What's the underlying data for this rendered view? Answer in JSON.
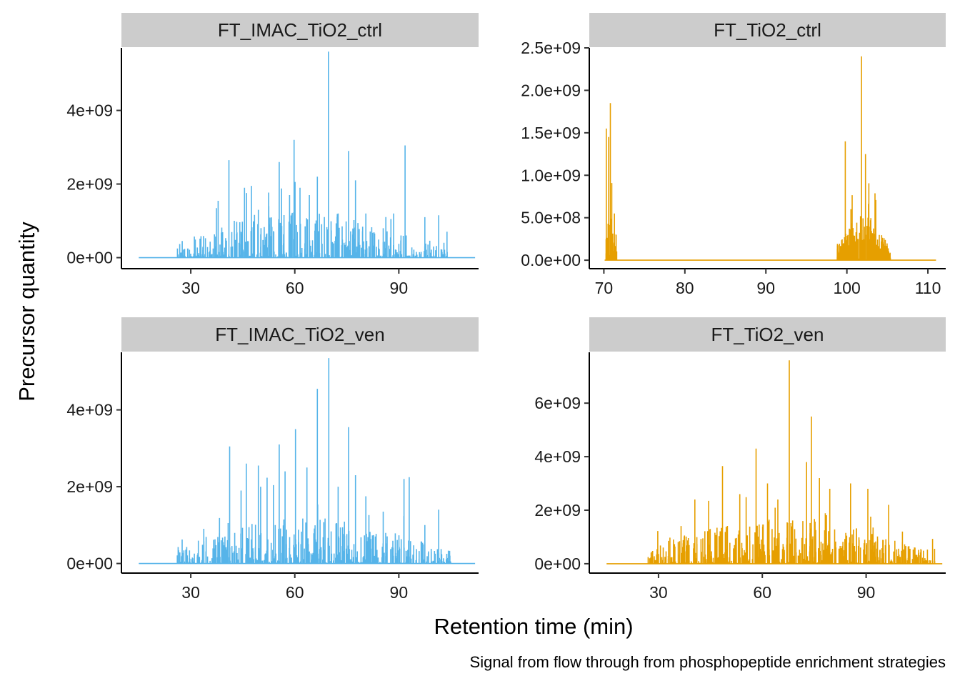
{
  "figure": {
    "xlabel": "Retention time (min)",
    "ylabel": "Precursor quantity",
    "caption": "Signal from flow through from phosphopeptide enrichment strategies"
  },
  "chart_data": [
    {
      "type": "line",
      "facet_label": "FT_IMAC_TiO2_ctrl",
      "color": "#56B4E9",
      "xlim": [
        10,
        113
      ],
      "ylim": [
        -300000000.0,
        5700000000.0
      ],
      "x_ticks": [
        30,
        60,
        90
      ],
      "x_tick_labels": [
        "30",
        "60",
        "90"
      ],
      "y_ticks": [
        0,
        2000000000.0,
        4000000000.0
      ],
      "y_tick_labels": [
        "0e+00",
        "2e+09",
        "4e+09"
      ],
      "baseline_range": [
        15,
        112
      ],
      "signal_range": [
        26,
        104
      ],
      "peaks": [
        {
          "x": 41.0,
          "y": 2650000000.0
        },
        {
          "x": 45.5,
          "y": 1900000000.0
        },
        {
          "x": 47.5,
          "y": 1950000000.0
        },
        {
          "x": 49.5,
          "y": 1300000000.0
        },
        {
          "x": 52.5,
          "y": 1400000000.0
        },
        {
          "x": 55.5,
          "y": 2600000000.0
        },
        {
          "x": 58.5,
          "y": 1700000000.0
        },
        {
          "x": 59.8,
          "y": 3200000000.0
        },
        {
          "x": 61.5,
          "y": 1900000000.0
        },
        {
          "x": 64.2,
          "y": 1700000000.0
        },
        {
          "x": 66.5,
          "y": 2200000000.0
        },
        {
          "x": 69.7,
          "y": 5600000000.0
        },
        {
          "x": 72.5,
          "y": 1200000000.0
        },
        {
          "x": 75.5,
          "y": 2900000000.0
        },
        {
          "x": 77.5,
          "y": 2100000000.0
        },
        {
          "x": 80.5,
          "y": 1200000000.0
        },
        {
          "x": 85.5,
          "y": 800000000.0
        },
        {
          "x": 88.5,
          "y": 1200000000.0
        },
        {
          "x": 91.8,
          "y": 3050000000.0
        },
        {
          "x": 97.5,
          "y": 1100000000.0
        },
        {
          "x": 101.5,
          "y": 1150000000.0
        }
      ]
    },
    {
      "type": "line",
      "facet_label": "FT_TiO2_ctrl",
      "color": "#E69F00",
      "xlim": [
        68.2,
        112.2
      ],
      "ylim": [
        -100000000.0,
        2500000000.0
      ],
      "x_ticks": [
        70,
        80,
        90,
        100,
        110
      ],
      "x_tick_labels": [
        "70",
        "80",
        "90",
        "100",
        "110"
      ],
      "y_ticks": [
        0,
        500000000.0,
        1000000000.0,
        1500000000.0,
        2000000000.0,
        2500000000.0
      ],
      "y_tick_labels": [
        "0.0e+00",
        "5.0e+08",
        "1.0e+09",
        "1.5e+09",
        "2.0e+09",
        "2.5e+09"
      ],
      "baseline_range": [
        70.1,
        111
      ],
      "signal_range": [
        70.2,
        71.6
      ],
      "signal_range_2": [
        98.8,
        105.4
      ],
      "peaks": [
        {
          "x": 70.3,
          "y": 1550000000.0
        },
        {
          "x": 70.8,
          "y": 1850000000.0
        },
        {
          "x": 70.6,
          "y": 1450000000.0
        },
        {
          "x": 71.3,
          "y": 550000000.0
        },
        {
          "x": 99.8,
          "y": 1400000000.0
        },
        {
          "x": 101.8,
          "y": 2400000000.0
        },
        {
          "x": 102.3,
          "y": 1250000000.0
        },
        {
          "x": 100.5,
          "y": 600000000.0
        },
        {
          "x": 103.5,
          "y": 350000000.0
        }
      ]
    },
    {
      "type": "line",
      "facet_label": "FT_IMAC_TiO2_ven",
      "color": "#56B4E9",
      "xlim": [
        10,
        113
      ],
      "ylim": [
        -250000000.0,
        5500000000.0
      ],
      "x_ticks": [
        30,
        60,
        90
      ],
      "x_tick_labels": [
        "30",
        "60",
        "90"
      ],
      "y_ticks": [
        0,
        2000000000.0,
        4000000000.0
      ],
      "y_tick_labels": [
        "0e+00",
        "2e+09",
        "4e+09"
      ],
      "baseline_range": [
        15,
        112
      ],
      "signal_range": [
        26,
        105
      ],
      "peaks": [
        {
          "x": 41.2,
          "y": 3050000000.0
        },
        {
          "x": 44.5,
          "y": 1900000000.0
        },
        {
          "x": 46.0,
          "y": 2600000000.0
        },
        {
          "x": 49.5,
          "y": 2550000000.0
        },
        {
          "x": 55.5,
          "y": 3100000000.0
        },
        {
          "x": 57.2,
          "y": 2400000000.0
        },
        {
          "x": 60.2,
          "y": 3500000000.0
        },
        {
          "x": 63.5,
          "y": 2500000000.0
        },
        {
          "x": 66.5,
          "y": 4550000000.0
        },
        {
          "x": 69.8,
          "y": 5350000000.0
        },
        {
          "x": 72.5,
          "y": 2000000000.0
        },
        {
          "x": 75.5,
          "y": 3550000000.0
        },
        {
          "x": 77.5,
          "y": 2300000000.0
        },
        {
          "x": 80.5,
          "y": 1750000000.0
        },
        {
          "x": 85.5,
          "y": 1350000000.0
        },
        {
          "x": 91.5,
          "y": 2200000000.0
        },
        {
          "x": 93.0,
          "y": 2250000000.0
        },
        {
          "x": 97.5,
          "y": 1000000000.0
        },
        {
          "x": 101.5,
          "y": 1400000000.0
        }
      ]
    },
    {
      "type": "line",
      "facet_label": "FT_TiO2_ven",
      "color": "#E69F00",
      "xlim": [
        10,
        113
      ],
      "ylim": [
        -350000000.0,
        7900000000.0
      ],
      "x_ticks": [
        30,
        60,
        90
      ],
      "x_tick_labels": [
        "30",
        "60",
        "90"
      ],
      "y_ticks": [
        0,
        2000000000.0,
        4000000000.0,
        6000000000.0
      ],
      "y_tick_labels": [
        "0e+00",
        "2e+09",
        "4e+09",
        "6e+09"
      ],
      "baseline_range": [
        15,
        112
      ],
      "signal_range": [
        27,
        110
      ],
      "peaks": [
        {
          "x": 40.5,
          "y": 2400000000.0
        },
        {
          "x": 44.5,
          "y": 2350000000.0
        },
        {
          "x": 48.5,
          "y": 3650000000.0
        },
        {
          "x": 53.5,
          "y": 2600000000.0
        },
        {
          "x": 58.2,
          "y": 4300000000.0
        },
        {
          "x": 61.5,
          "y": 3000000000.0
        },
        {
          "x": 64.5,
          "y": 2400000000.0
        },
        {
          "x": 67.8,
          "y": 7600000000.0
        },
        {
          "x": 72.8,
          "y": 3800000000.0
        },
        {
          "x": 74.2,
          "y": 5500000000.0
        },
        {
          "x": 76.5,
          "y": 3200000000.0
        },
        {
          "x": 79.5,
          "y": 2800000000.0
        },
        {
          "x": 85.5,
          "y": 3000000000.0
        },
        {
          "x": 90.5,
          "y": 2800000000.0
        },
        {
          "x": 96.5,
          "y": 2200000000.0
        },
        {
          "x": 100.5,
          "y": 1200000000.0
        }
      ]
    }
  ]
}
